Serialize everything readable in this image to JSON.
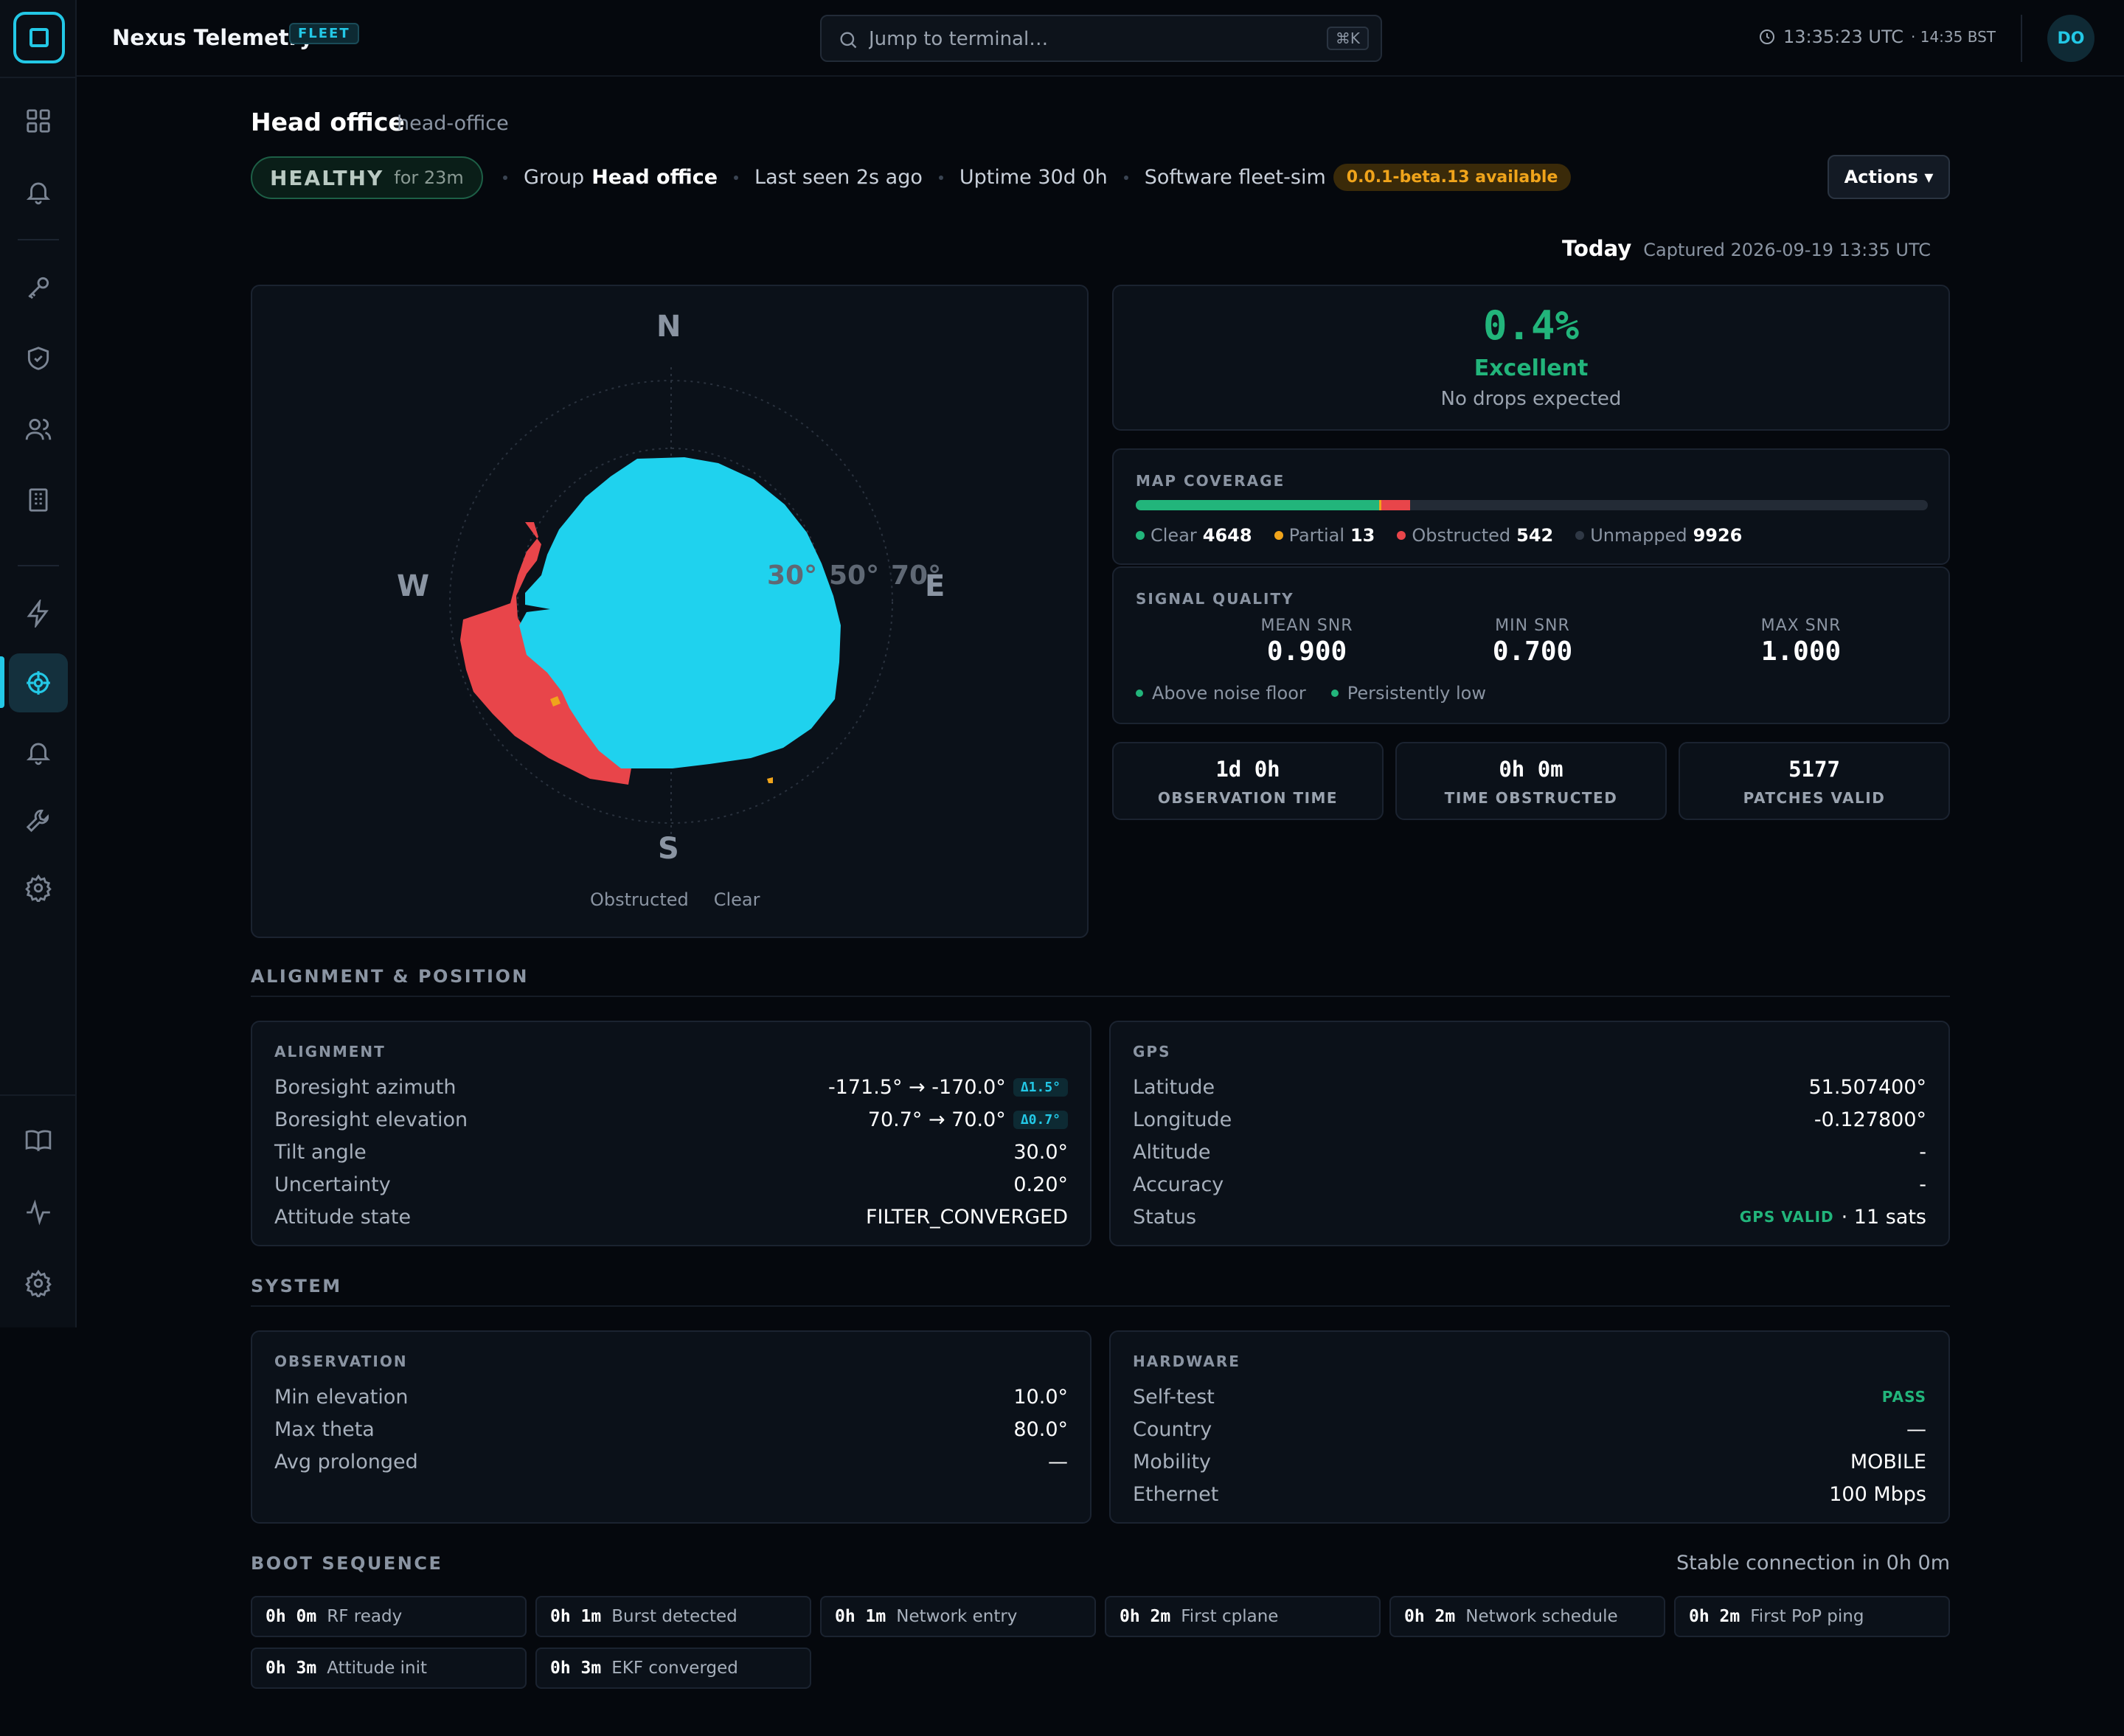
{
  "app": {
    "title": "Nexus Telemetry",
    "badge": "FLEET"
  },
  "search": {
    "placeholder": "Jump to terminal…",
    "shortcut": "⌘K"
  },
  "clock": {
    "utc": "13:35:23 UTC",
    "local": "· 14:35 BST"
  },
  "user": {
    "initials": "DO"
  },
  "sidebar": {
    "items": [
      {
        "icon": "grid-icon"
      },
      {
        "icon": "bell-icon"
      },
      {
        "icon": "key-icon"
      },
      {
        "icon": "shield-icon"
      },
      {
        "icon": "users-icon"
      },
      {
        "icon": "building-icon"
      },
      {
        "icon": "bolt-icon"
      },
      {
        "icon": "satellite-icon",
        "active": true
      },
      {
        "icon": "bell-icon"
      },
      {
        "icon": "wrench-icon"
      },
      {
        "icon": "gear-icon"
      },
      {
        "icon": "book-icon"
      },
      {
        "icon": "activity-icon"
      },
      {
        "icon": "gear-icon"
      }
    ]
  },
  "header": {
    "title": "Head office",
    "slug": "head-office",
    "status": "HEALTHY",
    "status_duration": "for 23m",
    "group_label": "Group",
    "group_value": "Head office",
    "last_seen": "Last seen 2s ago",
    "uptime": "Uptime 30d 0h",
    "software_label": "Software fleet-sim",
    "update_badge": "0.0.1-beta.13 available",
    "actions_label": "Actions ▾"
  },
  "capture": {
    "label": "Today",
    "captured": "Captured 2026-09-19 13:35 UTC"
  },
  "sky_map": {
    "compass": {
      "n": "N",
      "s": "S",
      "e": "E",
      "w": "W"
    },
    "rings": [
      "30°",
      "50°",
      "70°"
    ],
    "legend": [
      "Obstructed",
      "Clear"
    ],
    "colors": {
      "clear": "#1fd2ee",
      "obstructed": "#e8454a",
      "partial": "#f0a41b"
    }
  },
  "score": {
    "value": "0.4%",
    "label": "Excellent",
    "sub": "No drops expected",
    "color": "#22b57b"
  },
  "coverage": {
    "title": "MAP COVERAGE",
    "clear_label": "Clear",
    "clear": "4648",
    "partial_label": "Partial",
    "partial": "13",
    "obstructed_label": "Obstructed",
    "obstructed": "542",
    "unmapped_label": "Unmapped",
    "unmapped": "9926",
    "fractions": {
      "clear": 0.3074,
      "partial": 0.0009,
      "obstructed": 0.0358
    }
  },
  "signal": {
    "title": "SIGNAL QUALITY",
    "mean_label": "MEAN SNR",
    "mean": "0.900",
    "min_label": "MIN SNR",
    "min": "0.700",
    "max_label": "MAX SNR",
    "max": "1.000",
    "legend": [
      "Above noise floor",
      "Persistently low"
    ]
  },
  "stats": [
    {
      "value": "1d 0h",
      "label": "OBSERVATION TIME"
    },
    {
      "value": "0h 0m",
      "label": "TIME OBSTRUCTED"
    },
    {
      "value": "5177",
      "label": "PATCHES VALID"
    }
  ],
  "alignment_section": "ALIGNMENT & POSITION",
  "alignment": {
    "title": "ALIGNMENT",
    "rows": [
      {
        "k": "Boresight azimuth",
        "v": "-171.5° → -170.0°",
        "badge": "Δ1.5°"
      },
      {
        "k": "Boresight elevation",
        "v": "70.7° → 70.0°",
        "badge": "Δ0.7°"
      },
      {
        "k": "Tilt angle",
        "v": "30.0°"
      },
      {
        "k": "Uncertainty",
        "v": "0.20°"
      },
      {
        "k": "Attitude state",
        "v": "FILTER_CONVERGED"
      }
    ]
  },
  "gps": {
    "title": "GPS",
    "rows": [
      {
        "k": "Latitude",
        "v": "51.507400°"
      },
      {
        "k": "Longitude",
        "v": "-0.127800°"
      },
      {
        "k": "Altitude",
        "v": "-"
      },
      {
        "k": "Accuracy",
        "v": "-"
      },
      {
        "k": "Status",
        "v": "· 11 sats",
        "tag": "GPS VALID"
      }
    ]
  },
  "system_section": "SYSTEM",
  "observation": {
    "title": "OBSERVATION",
    "rows": [
      {
        "k": "Min elevation",
        "v": "10.0°"
      },
      {
        "k": "Max theta",
        "v": "80.0°"
      },
      {
        "k": "Avg prolonged",
        "v": "—"
      }
    ]
  },
  "hardware": {
    "title": "HARDWARE",
    "rows": [
      {
        "k": "Self-test",
        "v": "",
        "tag": "PASS"
      },
      {
        "k": "Country",
        "v": "—"
      },
      {
        "k": "Mobility",
        "v": "MOBILE"
      },
      {
        "k": "Ethernet",
        "v": "100 Mbps"
      }
    ]
  },
  "boot": {
    "title": "BOOT SEQUENCE",
    "summary": "Stable connection in 0h 0m",
    "steps": [
      {
        "t": "0h 0m",
        "l": "RF ready"
      },
      {
        "t": "0h 1m",
        "l": "Burst detected"
      },
      {
        "t": "0h 1m",
        "l": "Network entry"
      },
      {
        "t": "0h 2m",
        "l": "First cplane"
      },
      {
        "t": "0h 2m",
        "l": "Network schedule"
      },
      {
        "t": "0h 2m",
        "l": "First PoP ping"
      },
      {
        "t": "0h 3m",
        "l": "Attitude init"
      },
      {
        "t": "0h 3m",
        "l": "EKF converged"
      }
    ]
  }
}
